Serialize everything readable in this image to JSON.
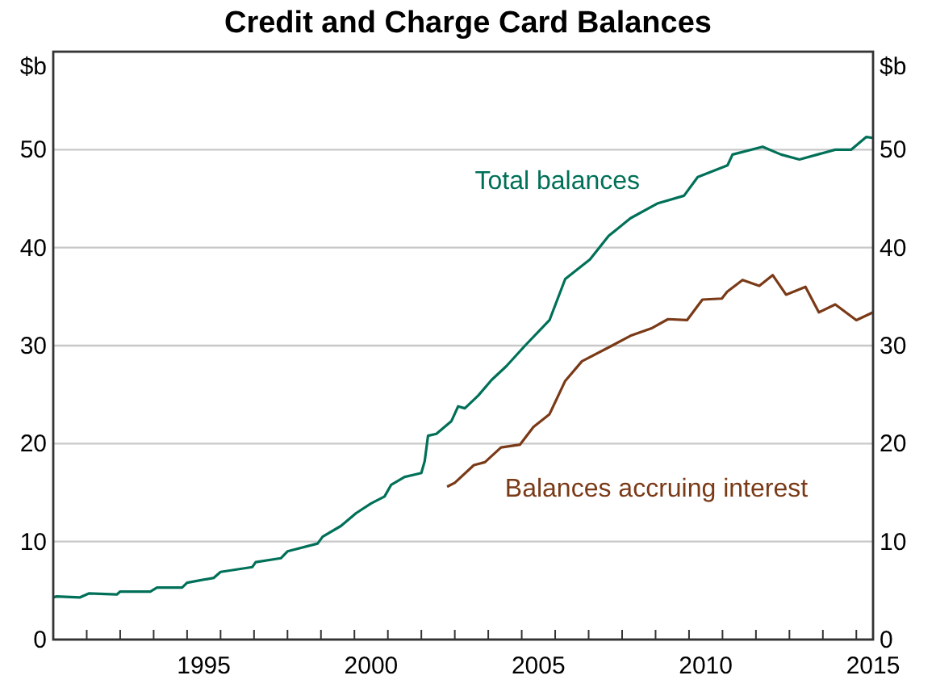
{
  "chart_data": {
    "type": "line",
    "title": "Credit and Charge Card Balances",
    "ylabel": "$b",
    "y2label": "$b",
    "xlim": [
      1991,
      2015.5
    ],
    "xticks": [
      {
        "value": 1991,
        "label": null
      },
      {
        "value": 1992,
        "label": null
      },
      {
        "value": 1993,
        "label": null
      },
      {
        "value": 1994,
        "label": null
      },
      {
        "value": 1995,
        "label": null
      },
      {
        "value": 1996,
        "label": null
      },
      {
        "value": 1997,
        "label": null
      },
      {
        "value": 1998,
        "label": null
      },
      {
        "value": 1999,
        "label": null
      },
      {
        "value": 2000,
        "label": null
      },
      {
        "value": 2001,
        "label": null
      },
      {
        "value": 2002,
        "label": null
      },
      {
        "value": 2003,
        "label": null
      },
      {
        "value": 2004,
        "label": null
      },
      {
        "value": 2005,
        "label": null
      },
      {
        "value": 2006,
        "label": null
      },
      {
        "value": 2007,
        "label": null
      },
      {
        "value": 2008,
        "label": null
      },
      {
        "value": 2009,
        "label": null
      },
      {
        "value": 2010,
        "label": null
      },
      {
        "value": 2011,
        "label": null
      },
      {
        "value": 2012,
        "label": null
      },
      {
        "value": 2013,
        "label": null
      },
      {
        "value": 2014,
        "label": null
      },
      {
        "value": 2015,
        "label": null
      },
      {
        "value": 1995.5,
        "label": "1995"
      },
      {
        "value": 2000.5,
        "label": "2000"
      },
      {
        "value": 2005.5,
        "label": "2005"
      },
      {
        "value": 2010.5,
        "label": "2010"
      },
      {
        "value": 2015.5,
        "label": "2015"
      }
    ],
    "ylim": [
      0,
      60
    ],
    "yticks": [
      0,
      10,
      20,
      30,
      40,
      50
    ],
    "y2lim": [
      0,
      60
    ],
    "y2ticks": [
      0,
      10,
      20,
      30,
      40,
      50
    ],
    "grid": "y",
    "line_style": "solid",
    "marker": "none",
    "series": [
      {
        "name": "Total balances",
        "color": "#007058",
        "x": [
          1991.0,
          1991.1,
          1991.8,
          1992.06,
          1992.9,
          1993.0,
          1993.9,
          1994.1,
          1994.85,
          1995.0,
          1995.8,
          1996.0,
          1996.95,
          1997.05,
          1997.8,
          1998.0,
          1998.9,
          1999.05,
          1999.6,
          2000.05,
          2000.5,
          2000.9,
          2001.1,
          2001.5,
          2002.0,
          2002.1,
          2002.2,
          2002.45,
          2002.9,
          2003.1,
          2003.3,
          2003.7,
          2004.1,
          2004.54,
          2005.1,
          2005.83,
          2006.3,
          2007.04,
          2007.6,
          2008.25,
          2009.05,
          2009.85,
          2010.26,
          2011.15,
          2011.3,
          2012.2,
          2012.75,
          2013.3,
          2014.37,
          2014.85,
          2015.3,
          2015.5
        ],
        "values": [
          4.3,
          4.4,
          4.3,
          4.7,
          4.6,
          4.9,
          4.9,
          5.3,
          5.3,
          5.8,
          6.3,
          6.9,
          7.4,
          7.9,
          8.3,
          9.0,
          9.8,
          10.5,
          11.6,
          12.9,
          13.9,
          14.6,
          15.8,
          16.6,
          17.0,
          18.2,
          20.8,
          21.0,
          22.3,
          23.8,
          23.6,
          24.9,
          26.5,
          27.9,
          30.0,
          32.6,
          36.8,
          38.8,
          41.2,
          43.0,
          44.5,
          45.3,
          47.2,
          48.4,
          49.5,
          50.3,
          49.5,
          49.0,
          50.0,
          50.0,
          51.3,
          51.2
        ]
      },
      {
        "name": "Balances accruing interest",
        "color": "#7a3a17",
        "x": [
          2002.77,
          2003.0,
          2003.57,
          2003.9,
          2004.38,
          2004.95,
          2005.35,
          2005.83,
          2006.3,
          2006.8,
          2007.7,
          2008.25,
          2008.9,
          2009.37,
          2009.94,
          2010.4,
          2010.98,
          2011.14,
          2011.6,
          2012.1,
          2012.5,
          2012.9,
          2013.48,
          2013.88,
          2014.37,
          2015.0,
          2015.5
        ],
        "values": [
          15.6,
          16.0,
          17.8,
          18.1,
          19.6,
          19.9,
          21.7,
          23.0,
          26.4,
          28.4,
          30.0,
          31.0,
          31.8,
          32.7,
          32.6,
          34.7,
          34.8,
          35.5,
          36.7,
          36.1,
          37.2,
          35.2,
          36.0,
          33.4,
          34.2,
          32.6,
          33.4
        ]
      }
    ]
  }
}
